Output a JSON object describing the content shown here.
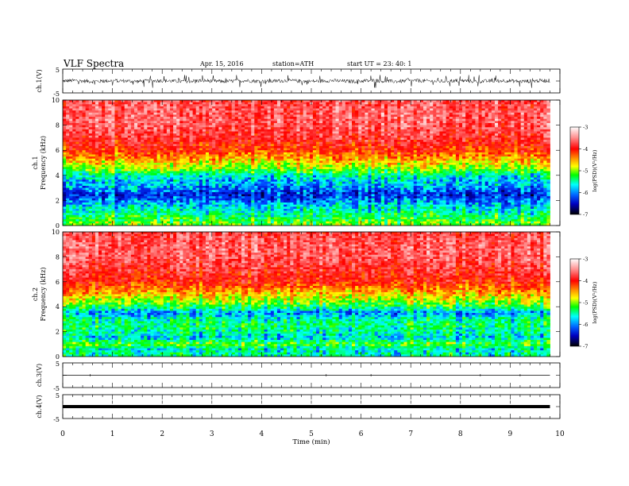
{
  "header": {
    "title": "VLF  Spectra",
    "date": "Apr. 15, 2016",
    "station": "station=ATH",
    "start": "start  UT  =   23: 40: 1"
  },
  "chart_data": [
    {
      "type": "line",
      "panel": "ch1",
      "ylabel": "ch.1(V)",
      "ylim": [
        -5,
        5
      ],
      "yticks": [
        "5",
        "-5"
      ],
      "xlim": [
        0,
        10
      ],
      "series": [
        {
          "values_summary": "noisy signal centred near 0 V, amplitude roughly ±1.5 V, spikes to ±3 V",
          "range_min": -3,
          "range_max": 2.5
        }
      ]
    },
    {
      "type": "heatmap",
      "panel": "ch1-spectrogram",
      "ylabel_channel": "ch.1",
      "ylabel": "Frequency  (kHz)",
      "ylim": [
        0,
        10
      ],
      "yticks": [
        "0",
        "2",
        "4",
        "6",
        "8",
        "10"
      ],
      "xlim": [
        0,
        9.8
      ],
      "colorbar": {
        "label": "log(PSD)(V²/Hz)",
        "range": [
          -7,
          -3
        ],
        "ticks": [
          "-3",
          "-4",
          "-5",
          "-6",
          "-7"
        ]
      },
      "profile": [
        {
          "freq": 0.2,
          "logpsd": -5.2
        },
        {
          "freq": 0.6,
          "logpsd": -5.4
        },
        {
          "freq": 1.0,
          "logpsd": -5.6
        },
        {
          "freq": 1.5,
          "logpsd": -5.8
        },
        {
          "freq": 2.0,
          "logpsd": -6.1
        },
        {
          "freq": 2.5,
          "logpsd": -6.4
        },
        {
          "freq": 3.0,
          "logpsd": -6.0
        },
        {
          "freq": 3.5,
          "logpsd": -5.9
        },
        {
          "freq": 4.0,
          "logpsd": -5.7
        },
        {
          "freq": 4.5,
          "logpsd": -5.1
        },
        {
          "freq": 5.0,
          "logpsd": -4.8
        },
        {
          "freq": 5.5,
          "logpsd": -4.5
        },
        {
          "freq": 6.0,
          "logpsd": -4.2
        },
        {
          "freq": 7.0,
          "logpsd": -3.9
        },
        {
          "freq": 8.0,
          "logpsd": -3.7
        },
        {
          "freq": 9.0,
          "logpsd": -3.7
        },
        {
          "freq": 10.0,
          "logpsd": -3.8
        }
      ]
    },
    {
      "type": "heatmap",
      "panel": "ch2-spectrogram",
      "ylabel_channel": "ch.2",
      "ylabel": "Frequency  (kHz)",
      "ylim": [
        0,
        10
      ],
      "yticks": [
        "0",
        "2",
        "4",
        "6",
        "8",
        "10"
      ],
      "xlim": [
        0,
        9.8
      ],
      "colorbar": {
        "label": "log(PSD)(V²/Hz)",
        "range": [
          -7,
          -3
        ],
        "ticks": [
          "-3",
          "-4",
          "-5",
          "-6",
          "-7"
        ]
      },
      "profile": [
        {
          "freq": 0.2,
          "logpsd": -5.6
        },
        {
          "freq": 0.6,
          "logpsd": -5.7
        },
        {
          "freq": 1.0,
          "logpsd": -5.2
        },
        {
          "freq": 1.5,
          "logpsd": -5.8
        },
        {
          "freq": 2.0,
          "logpsd": -5.6
        },
        {
          "freq": 2.5,
          "logpsd": -5.5
        },
        {
          "freq": 3.0,
          "logpsd": -5.6
        },
        {
          "freq": 3.5,
          "logpsd": -6.0
        },
        {
          "freq": 4.0,
          "logpsd": -5.4
        },
        {
          "freq": 4.5,
          "logpsd": -5.0
        },
        {
          "freq": 5.0,
          "logpsd": -4.7
        },
        {
          "freq": 5.5,
          "logpsd": -4.4
        },
        {
          "freq": 6.0,
          "logpsd": -4.1
        },
        {
          "freq": 7.0,
          "logpsd": -3.9
        },
        {
          "freq": 8.0,
          "logpsd": -3.7
        },
        {
          "freq": 9.0,
          "logpsd": -3.7
        },
        {
          "freq": 10.0,
          "logpsd": -3.8
        }
      ]
    },
    {
      "type": "line",
      "panel": "ch3",
      "ylabel": "ch.3(V)",
      "ylim": [
        -5,
        5
      ],
      "yticks": [
        "5",
        "-5"
      ],
      "xlim": [
        0,
        10
      ],
      "series": [
        {
          "values_summary": "flat line near 0 V with a few small spikes",
          "level": 0
        }
      ]
    },
    {
      "type": "line",
      "panel": "ch4",
      "ylabel": "ch.4(V)",
      "ylim": [
        -5,
        5
      ],
      "yticks": [
        "5",
        "-5"
      ],
      "xlim": [
        0,
        10
      ],
      "series": [
        {
          "values_summary": "thick flat line at 0 V",
          "level": 0
        }
      ]
    }
  ],
  "x_axis": {
    "label": "Time  (min)",
    "ticks": [
      "0",
      "1",
      "2",
      "3",
      "4",
      "5",
      "6",
      "7",
      "8",
      "9",
      "10"
    ],
    "range": [
      0,
      10
    ],
    "data_end": 9.8
  },
  "colors": {
    "background": "#ffffff",
    "axis": "#000000",
    "colormap": [
      "#ffffff",
      "#ff0000",
      "#ffa000",
      "#ffff00",
      "#00ff00",
      "#00ffff",
      "#0000ff",
      "#000000"
    ]
  }
}
